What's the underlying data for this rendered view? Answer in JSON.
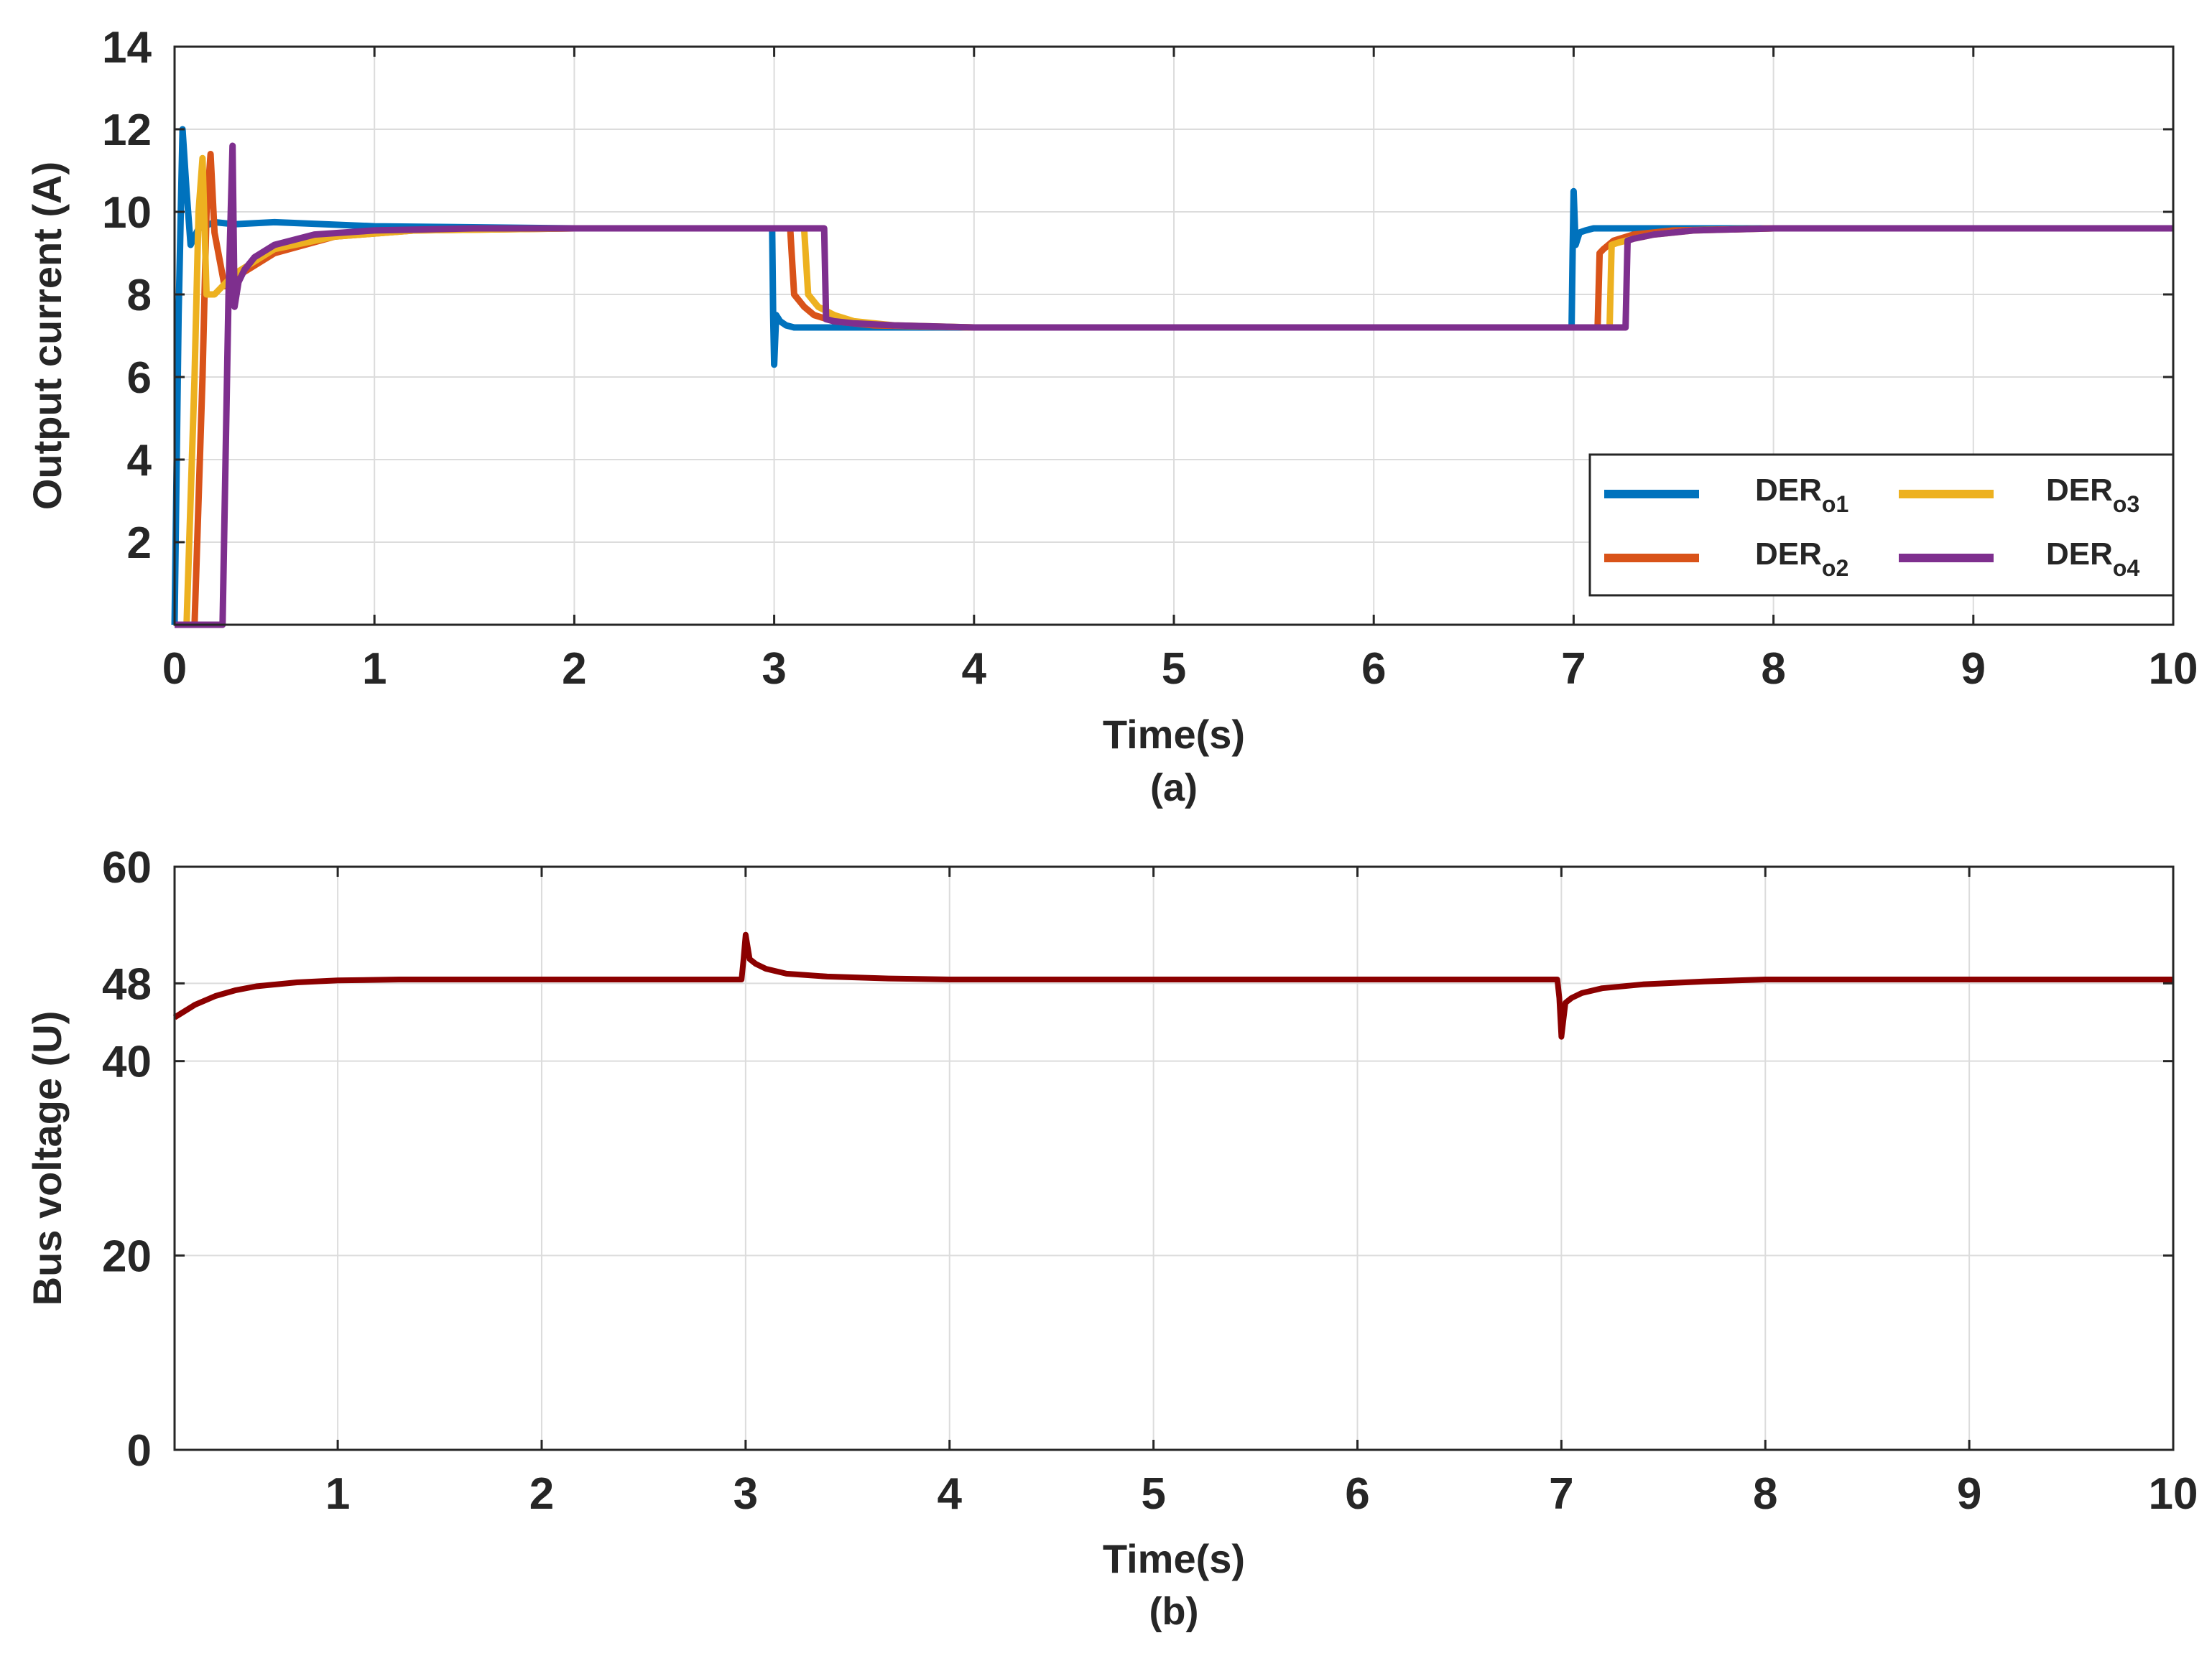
{
  "colors": {
    "der1": "#0072BD",
    "der2": "#D95319",
    "der3": "#EDB120",
    "der4": "#7E2F8E",
    "bus": "#8B0000"
  },
  "chart_data": [
    {
      "type": "line",
      "panel": "(a)",
      "caption": "(a)",
      "xlabel": "Time(s)",
      "ylabel": "Output current (A)",
      "xlim": [
        0,
        10
      ],
      "ylim": [
        0,
        14
      ],
      "xticks": [
        0,
        1,
        2,
        3,
        4,
        5,
        6,
        7,
        8,
        9,
        10
      ],
      "xtick_labels": [
        "0",
        "1",
        "2",
        "3",
        "4",
        "5",
        "6",
        "7",
        "8",
        "9",
        "10"
      ],
      "yticks": [
        2,
        4,
        6,
        8,
        10,
        12,
        14
      ],
      "ytick_labels": [
        "2",
        "4",
        "6",
        "8",
        "10",
        "12",
        "14"
      ],
      "grid": true,
      "legend_position": "bottom-right",
      "series": [
        {
          "name": "DER_o1",
          "legend_main": "DER",
          "legend_sub": "o1",
          "color_key": "der1",
          "x": [
            0,
            0.02,
            0.04,
            0.06,
            0.08,
            0.12,
            0.2,
            0.3,
            0.5,
            1.0,
            2.0,
            2.99,
            2.995,
            3.0,
            3.01,
            3.03,
            3.06,
            3.1,
            3.2,
            3.5,
            4.0,
            6.99,
            6.995,
            7.0,
            7.01,
            7.03,
            7.06,
            7.1,
            7.2,
            7.5,
            8.0,
            10.0
          ],
          "y": [
            0,
            7.5,
            12,
            10.5,
            9.2,
            9.6,
            9.75,
            9.7,
            9.75,
            9.65,
            9.6,
            9.6,
            7.5,
            6.3,
            7.5,
            7.35,
            7.25,
            7.2,
            7.2,
            7.2,
            7.2,
            7.2,
            9.0,
            10.5,
            9.2,
            9.5,
            9.55,
            9.6,
            9.6,
            9.6,
            9.6,
            9.6
          ]
        },
        {
          "name": "DER_o2",
          "legend_main": "DER",
          "legend_sub": "o2",
          "color_key": "der2",
          "x": [
            0,
            0.1,
            0.14,
            0.16,
            0.18,
            0.2,
            0.25,
            0.3,
            0.5,
            0.8,
            1.2,
            2.0,
            3.08,
            3.1,
            3.15,
            3.2,
            3.3,
            3.5,
            4.0,
            7.12,
            7.13,
            7.15,
            7.2,
            7.3,
            7.5,
            8.0,
            10.0
          ],
          "y": [
            0,
            0,
            6,
            10,
            11.4,
            9.5,
            8.2,
            8.4,
            9.0,
            9.4,
            9.55,
            9.6,
            9.6,
            8.0,
            7.7,
            7.5,
            7.35,
            7.25,
            7.2,
            7.2,
            9.0,
            9.1,
            9.3,
            9.45,
            9.55,
            9.6,
            9.6
          ]
        },
        {
          "name": "DER_o3",
          "legend_main": "DER",
          "legend_sub": "o3",
          "color_key": "der3",
          "x": [
            0,
            0.06,
            0.1,
            0.12,
            0.14,
            0.16,
            0.2,
            0.3,
            0.5,
            0.8,
            1.2,
            2.0,
            3.15,
            3.17,
            3.22,
            3.3,
            3.4,
            3.6,
            4.0,
            7.18,
            7.19,
            7.22,
            7.3,
            7.4,
            7.6,
            8.0,
            10.0
          ],
          "y": [
            0,
            0,
            6,
            10,
            11.3,
            8.0,
            8.0,
            8.5,
            9.1,
            9.4,
            9.55,
            9.6,
            9.6,
            8.0,
            7.7,
            7.5,
            7.35,
            7.25,
            7.2,
            7.2,
            9.2,
            9.25,
            9.35,
            9.45,
            9.55,
            9.6,
            9.6
          ]
        },
        {
          "name": "DER_o4",
          "legend_main": "DER",
          "legend_sub": "o4",
          "color_key": "der4",
          "x": [
            0,
            0.24,
            0.27,
            0.29,
            0.3,
            0.32,
            0.35,
            0.4,
            0.5,
            0.7,
            1.0,
            1.5,
            2.0,
            3.25,
            3.26,
            3.3,
            3.4,
            3.6,
            4.0,
            7.26,
            7.27,
            7.3,
            7.4,
            7.6,
            8.0,
            10.0
          ],
          "y": [
            0,
            0,
            8,
            11.6,
            7.7,
            8.3,
            8.6,
            8.9,
            9.2,
            9.45,
            9.55,
            9.6,
            9.6,
            9.6,
            7.4,
            7.35,
            7.3,
            7.25,
            7.2,
            7.2,
            9.3,
            9.35,
            9.45,
            9.55,
            9.6,
            9.6
          ]
        }
      ]
    },
    {
      "type": "line",
      "panel": "(b)",
      "caption": "(b)",
      "xlabel": "Time(s)",
      "ylabel": "Bus voltage (U)",
      "xlim": [
        0.2,
        10
      ],
      "ylim": [
        0,
        60
      ],
      "xticks": [
        1,
        2,
        3,
        4,
        5,
        6,
        7,
        8,
        9,
        10
      ],
      "xtick_labels": [
        "1",
        "2",
        "3",
        "4",
        "5",
        "6",
        "7",
        "8",
        "9",
        "10"
      ],
      "yticks": [
        0,
        20,
        40,
        48,
        60
      ],
      "ytick_labels": [
        "0",
        "20",
        "40",
        "48",
        "60"
      ],
      "grid": true,
      "series": [
        {
          "name": "Bus voltage",
          "color_key": "bus",
          "x": [
            0.2,
            0.3,
            0.4,
            0.5,
            0.6,
            0.8,
            1.0,
            1.3,
            1.6,
            2.0,
            2.98,
            2.99,
            3.0,
            3.02,
            3.05,
            3.1,
            3.2,
            3.4,
            3.7,
            4.0,
            5.0,
            6.0,
            6.98,
            6.99,
            7.0,
            7.02,
            7.05,
            7.1,
            7.2,
            7.4,
            7.7,
            8.0,
            9.0,
            10.0
          ],
          "y": [
            44.5,
            45.8,
            46.7,
            47.3,
            47.7,
            48.1,
            48.3,
            48.4,
            48.4,
            48.4,
            48.4,
            50.5,
            53.0,
            50.5,
            50.0,
            49.5,
            49.0,
            48.7,
            48.5,
            48.4,
            48.4,
            48.4,
            48.4,
            46.5,
            42.5,
            46.0,
            46.5,
            47.0,
            47.5,
            47.9,
            48.2,
            48.4,
            48.4,
            48.4
          ]
        }
      ]
    }
  ]
}
